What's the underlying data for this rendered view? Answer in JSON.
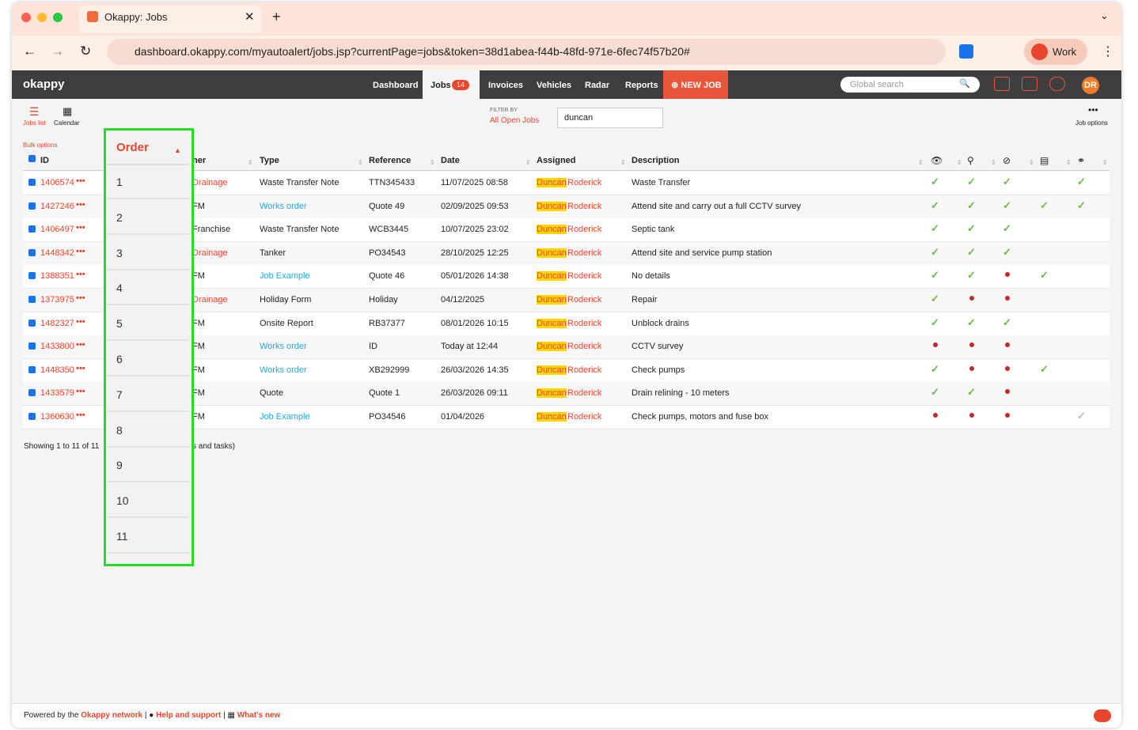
{
  "browser": {
    "tab_title": "Okappy: Jobs",
    "url": "dashboard.okappy.com/myautoalert/jobs.jsp?currentPage=jobs&token=38d1abea-f44b-48fd-971e-6fec74f57b20#",
    "profile": "Work"
  },
  "nav": {
    "logo": "okappy",
    "items": [
      "Dashboard",
      "Jobs",
      "Invoices",
      "Vehicles",
      "Radar",
      "Reports"
    ],
    "jobs_badge": "14",
    "new_job": "NEW JOB",
    "search_placeholder": "Global search",
    "avatar": "DR"
  },
  "toolbar": {
    "jobs_list": "Jobs list",
    "calendar": "Calendar",
    "filter_by": "FILTER BY",
    "filter": "All Open Jobs",
    "search_value": "duncan",
    "job_options": "Job options"
  },
  "table": {
    "bulk_options": "Bulk options",
    "headers": [
      "ID",
      "ner",
      "Type",
      "Reference",
      "Date",
      "Assigned",
      "Description"
    ],
    "rows": [
      {
        "id": "1406574",
        "owner": "Drainage",
        "type": "Waste Transfer Note",
        "type_link": false,
        "reference": "TTN345433",
        "date": "11/07/2025 08:58",
        "assigned_first": "Duncan",
        "assigned_last": "Roderick",
        "description": "Waste Transfer",
        "status": [
          "check",
          "check",
          "check",
          null,
          "check"
        ]
      },
      {
        "id": "1427246",
        "owner": "FM",
        "type": "Works order",
        "type_link": true,
        "reference": "Quote 49",
        "date": "02/09/2025 09:53",
        "assigned_first": "Duncan",
        "assigned_last": "Roderick",
        "description": "Attend site and carry out a full CCTV survey",
        "status": [
          "check",
          "check",
          "check",
          "check",
          "check"
        ]
      },
      {
        "id": "1406497",
        "owner": "Franchise",
        "type": "Waste Transfer Note",
        "type_link": false,
        "reference": "WCB3445",
        "date": "10/07/2025 23:02",
        "assigned_first": "Duncan",
        "assigned_last": "Roderick",
        "description": "Septic tank",
        "status": [
          "check",
          "check",
          "check",
          null,
          null
        ]
      },
      {
        "id": "1448342",
        "owner": "Drainage",
        "type": "Tanker",
        "type_link": false,
        "reference": "PO34543",
        "date": "28/10/2025 12:25",
        "assigned_first": "Duncan",
        "assigned_last": "Roderick",
        "description": "Attend site and service pump station",
        "status": [
          "check",
          "check",
          "check",
          null,
          null
        ]
      },
      {
        "id": "1388351",
        "owner": "FM",
        "type": "Job Example",
        "type_link": true,
        "reference": "Quote 46",
        "date": "05/01/2026 14:38",
        "assigned_first": "Duncan",
        "assigned_last": "Roderick",
        "description": "No details",
        "status": [
          "check",
          "check",
          "dot",
          "check",
          null
        ]
      },
      {
        "id": "1373975",
        "owner": "Drainage",
        "type": "Holiday Form",
        "type_link": false,
        "reference": "Holiday",
        "date": "04/12/2025",
        "assigned_first": "Duncan",
        "assigned_last": "Roderick",
        "description": "Repair",
        "status": [
          "check",
          "dot",
          "dot",
          null,
          null
        ]
      },
      {
        "id": "1482327",
        "owner": "FM",
        "type": "Onsite Report",
        "type_link": false,
        "reference": "RB37377",
        "date": "08/01/2026 10:15",
        "assigned_first": "Duncan",
        "assigned_last": "Roderick",
        "description": "Unblock drains",
        "status": [
          "check",
          "check",
          "check",
          null,
          null
        ]
      },
      {
        "id": "1433800",
        "owner": "FM",
        "type": "Works order",
        "type_link": true,
        "reference": "ID",
        "date": "Today at 12:44",
        "assigned_first": "Duncan",
        "assigned_last": "Roderick",
        "description": "CCTV survey",
        "status": [
          "dot",
          "dot",
          "dot",
          null,
          null
        ]
      },
      {
        "id": "1448350",
        "owner": "FM",
        "type": "Works order",
        "type_link": true,
        "reference": "XB292999",
        "date": "26/03/2026 14:35",
        "assigned_first": "Duncan",
        "assigned_last": "Roderick",
        "description": "Check pumps",
        "status": [
          "check",
          "dot",
          "dot",
          "check",
          null
        ]
      },
      {
        "id": "1433579",
        "owner": "FM",
        "type": "Quote",
        "type_link": false,
        "reference": "Quote 1",
        "date": "26/03/2026 09:11",
        "assigned_first": "Duncan",
        "assigned_last": "Roderick",
        "description": "Drain relining - 10 meters",
        "status": [
          "check",
          "check",
          "dot",
          null,
          null
        ]
      },
      {
        "id": "1360630",
        "owner": "FM",
        "type": "Job Example",
        "type_link": true,
        "reference": "PO34546",
        "date": "01/04/2026",
        "assigned_first": "Duncan",
        "assigned_last": "Roderick",
        "description": "Check pumps, motors and fuse box",
        "status": [
          "dot",
          "dot",
          "dot",
          null,
          "check-grey"
        ]
      }
    ]
  },
  "order_column": {
    "header": "Order",
    "values": [
      "1",
      "2",
      "3",
      "4",
      "5",
      "6",
      "7",
      "8",
      "9",
      "10",
      "11"
    ]
  },
  "footer": {
    "showing": "Showing 1 to 11 of 11",
    "showing_suffix": "s and tasks)",
    "powered": "Powered by the",
    "network": "Okappy network",
    "help": "Help and support",
    "whats_new": "What's new"
  }
}
